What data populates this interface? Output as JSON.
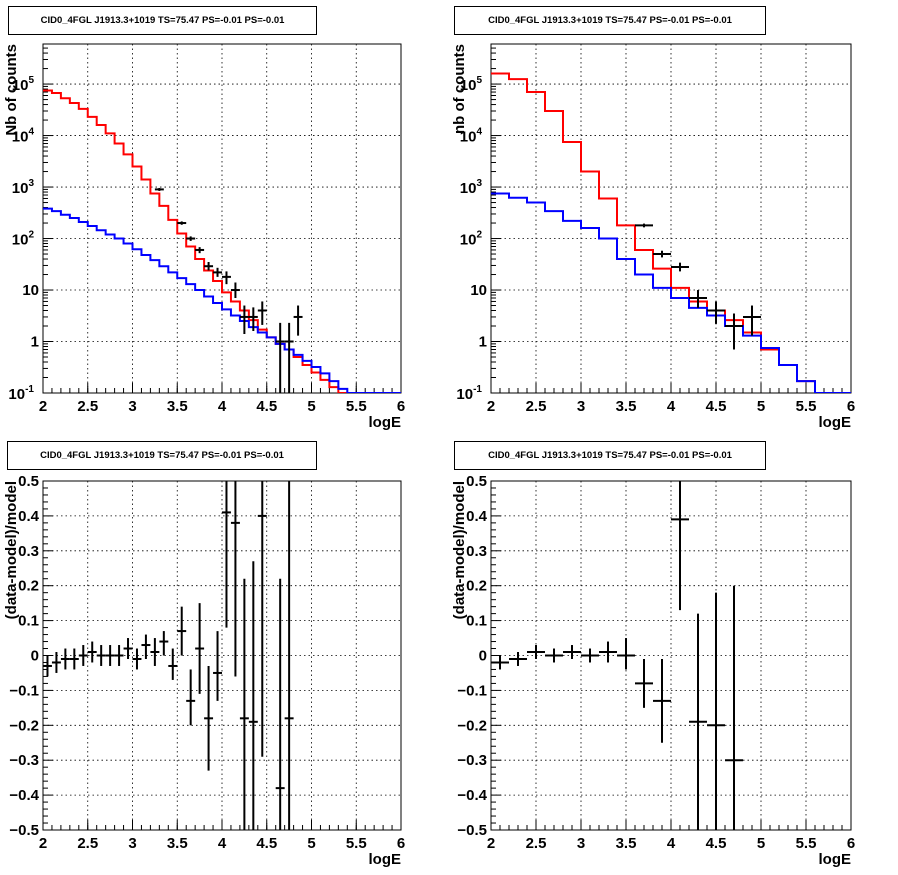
{
  "chart_data": [
    {
      "type": "histogram",
      "title": "CID0_4FGL J1913.3+1019 TS=75.47 PS=-0.01 PS=-0.01",
      "xlabel": "logE",
      "ylabel": "Nb of counts",
      "ylog": true,
      "xlim": [
        2,
        6
      ],
      "ylim": [
        0.1,
        600000
      ],
      "grid": true,
      "x_ticks": [
        "2",
        "2.5",
        "3",
        "3.5",
        "4",
        "4.5",
        "5",
        "5.5",
        "6"
      ],
      "y_ticks": [
        "10^-1",
        "1",
        "10",
        "10^2",
        "10^3",
        "10^4",
        "10^5"
      ],
      "series": [
        {
          "color": "#ff0000",
          "style": "step",
          "bin_edges": [
            2.0,
            2.1,
            2.2,
            2.3,
            2.4,
            2.5,
            2.6,
            2.7,
            2.8,
            2.9,
            3.0,
            3.1,
            3.2,
            3.3,
            3.4,
            3.5,
            3.6,
            3.7,
            3.8,
            3.9,
            4.0,
            4.1,
            4.2,
            4.3,
            4.4,
            4.5,
            4.6,
            4.7,
            4.8,
            4.9,
            5.0,
            5.1,
            5.2,
            5.3,
            5.4,
            5.5,
            5.6,
            5.7,
            5.8,
            5.9,
            6.0
          ],
          "values": [
            75000,
            67000,
            53000,
            43000,
            33000,
            23000,
            16000,
            11000,
            7000,
            4300,
            2500,
            1400,
            750,
            430,
            230,
            125,
            70,
            40,
            24,
            15,
            9,
            6,
            4,
            2.6,
            1.7,
            1.2,
            0.9,
            0.7,
            0.5,
            0.35,
            0.25,
            0.18,
            0.13,
            0.1,
            0.1,
            0.1,
            0.1,
            0.1,
            0.1,
            0.1
          ]
        },
        {
          "color": "#0000ff",
          "style": "step",
          "bin_edges": [
            2.0,
            2.1,
            2.2,
            2.3,
            2.4,
            2.5,
            2.6,
            2.7,
            2.8,
            2.9,
            3.0,
            3.1,
            3.2,
            3.3,
            3.4,
            3.5,
            3.6,
            3.7,
            3.8,
            3.9,
            4.0,
            4.1,
            4.2,
            4.3,
            4.4,
            4.5,
            4.6,
            4.7,
            4.8,
            4.9,
            5.0,
            5.1,
            5.2,
            5.3,
            5.4,
            5.5,
            5.6,
            5.7,
            5.8,
            5.9,
            6.0
          ],
          "values": [
            380,
            340,
            290,
            250,
            210,
            175,
            145,
            120,
            100,
            80,
            62,
            48,
            38,
            29,
            22,
            17,
            13,
            10,
            7.5,
            5.6,
            4.2,
            3.2,
            2.5,
            1.9,
            1.5,
            1.2,
            0.9,
            0.7,
            0.55,
            0.42,
            0.32,
            0.24,
            0.17,
            0.12,
            0.1,
            0.1,
            0.1,
            0.1,
            0.1,
            0.1
          ]
        },
        {
          "color": "#000000",
          "style": "errorbar",
          "points": [
            {
              "x": 3.3,
              "xerr": 0.05,
              "y": 900,
              "ylo": 840,
              "yhi": 960
            },
            {
              "x": 3.55,
              "xerr": 0.05,
              "y": 200,
              "ylo": 185,
              "yhi": 215
            },
            {
              "x": 3.65,
              "xerr": 0.05,
              "y": 100,
              "ylo": 90,
              "yhi": 110
            },
            {
              "x": 3.75,
              "xerr": 0.05,
              "y": 60,
              "ylo": 52,
              "yhi": 68
            },
            {
              "x": 3.85,
              "xerr": 0.05,
              "y": 29,
              "ylo": 24,
              "yhi": 35
            },
            {
              "x": 3.95,
              "xerr": 0.05,
              "y": 22,
              "ylo": 18,
              "yhi": 27
            },
            {
              "x": 4.05,
              "xerr": 0.05,
              "y": 18,
              "ylo": 13,
              "yhi": 23
            },
            {
              "x": 4.15,
              "xerr": 0.05,
              "y": 10,
              "ylo": 7,
              "yhi": 14
            },
            {
              "x": 4.25,
              "xerr": 0.05,
              "y": 3,
              "ylo": 1.4,
              "yhi": 5
            },
            {
              "x": 4.35,
              "xerr": 0.05,
              "y": 3,
              "ylo": 1.6,
              "yhi": 4.6
            },
            {
              "x": 4.45,
              "xerr": 0.05,
              "y": 4,
              "ylo": 2.1,
              "yhi": 6
            },
            {
              "x": 4.65,
              "xerr": 0.05,
              "y": 1,
              "ylo": 0.1,
              "yhi": 2.3
            },
            {
              "x": 4.75,
              "xerr": 0.05,
              "y": 1,
              "ylo": 0.1,
              "yhi": 2.3
            },
            {
              "x": 4.85,
              "xerr": 0.05,
              "y": 3,
              "ylo": 1.3,
              "yhi": 5
            }
          ]
        }
      ]
    },
    {
      "type": "histogram",
      "title": "CID0_4FGL J1913.3+1019 TS=75.47 PS=-0.01 PS=-0.01",
      "xlabel": "logE",
      "ylabel": "nb of counts",
      "ylog": true,
      "xlim": [
        2,
        6
      ],
      "ylim": [
        0.1,
        600000
      ],
      "grid": true,
      "x_ticks": [
        "2",
        "2.5",
        "3",
        "3.5",
        "4",
        "4.5",
        "5",
        "5.5",
        "6"
      ],
      "y_ticks": [
        "10^-1",
        "1",
        "10",
        "10^2",
        "10^3",
        "10^4",
        "10^5"
      ],
      "series": [
        {
          "color": "#ff0000",
          "style": "step",
          "bin_edges": [
            2.0,
            2.2,
            2.4,
            2.6,
            2.8,
            3.0,
            3.2,
            3.4,
            3.6,
            3.8,
            4.0,
            4.2,
            4.4,
            4.6,
            4.8,
            5.0,
            5.2,
            5.4,
            5.6,
            5.8,
            6.0
          ],
          "values": [
            160000,
            125000,
            70000,
            30000,
            7500,
            2000,
            600,
            180,
            60,
            26,
            11,
            6,
            4,
            2.6,
            1.5,
            0.7,
            0.35,
            0.17,
            0.1,
            0.1
          ]
        },
        {
          "color": "#0000ff",
          "style": "step",
          "bin_edges": [
            2.0,
            2.2,
            2.4,
            2.6,
            2.8,
            3.0,
            3.2,
            3.4,
            3.6,
            3.8,
            4.0,
            4.2,
            4.4,
            4.6,
            4.8,
            5.0,
            5.2,
            5.4,
            5.6,
            5.8,
            6.0
          ],
          "values": [
            750,
            620,
            500,
            340,
            220,
            160,
            100,
            40,
            20,
            11,
            7,
            4.5,
            3.2,
            2,
            1.3,
            0.75,
            0.35,
            0.17,
            0.1,
            0.1
          ]
        },
        {
          "color": "#000000",
          "style": "errorbar",
          "points": [
            {
              "x": 3.7,
              "xerr": 0.1,
              "y": 180,
              "ylo": 165,
              "yhi": 195
            },
            {
              "x": 3.9,
              "xerr": 0.1,
              "y": 50,
              "ylo": 43,
              "yhi": 58
            },
            {
              "x": 4.1,
              "xerr": 0.1,
              "y": 28,
              "ylo": 23,
              "yhi": 34
            },
            {
              "x": 4.3,
              "xerr": 0.1,
              "y": 7,
              "ylo": 4.5,
              "yhi": 10
            },
            {
              "x": 4.5,
              "xerr": 0.1,
              "y": 4,
              "ylo": 2.2,
              "yhi": 6
            },
            {
              "x": 4.7,
              "xerr": 0.1,
              "y": 2,
              "ylo": 0.7,
              "yhi": 3.5
            },
            {
              "x": 4.9,
              "xerr": 0.1,
              "y": 3,
              "ylo": 1.3,
              "yhi": 5
            }
          ]
        }
      ]
    },
    {
      "type": "errorbar",
      "title": "CID0_4FGL J1913.3+1019 TS=75.47 PS=-0.01 PS=-0.01",
      "xlabel": "logE",
      "ylabel": "(data-model)/model",
      "ylog": false,
      "xlim": [
        2,
        6
      ],
      "ylim": [
        -0.5,
        0.5
      ],
      "grid": true,
      "x_ticks": [
        "2",
        "2.5",
        "3",
        "3.5",
        "4",
        "4.5",
        "5",
        "5.5",
        "6"
      ],
      "y_ticks": [
        "−0.5",
        "−0.4",
        "−0.3",
        "−0.2",
        "−0.1",
        "0",
        "0.1",
        "0.2",
        "0.3",
        "0.4",
        "0.5"
      ],
      "series": [
        {
          "color": "#000000",
          "style": "errorbar",
          "points": [
            {
              "x": 2.05,
              "xerr": 0.05,
              "y": -0.03,
              "ylo": -0.06,
              "yhi": 0.0
            },
            {
              "x": 2.15,
              "xerr": 0.05,
              "y": -0.02,
              "ylo": -0.05,
              "yhi": 0.01
            },
            {
              "x": 2.25,
              "xerr": 0.05,
              "y": -0.01,
              "ylo": -0.04,
              "yhi": 0.02
            },
            {
              "x": 2.35,
              "xerr": 0.05,
              "y": -0.01,
              "ylo": -0.04,
              "yhi": 0.02
            },
            {
              "x": 2.45,
              "xerr": 0.05,
              "y": 0.0,
              "ylo": -0.03,
              "yhi": 0.03
            },
            {
              "x": 2.55,
              "xerr": 0.05,
              "y": 0.01,
              "ylo": -0.02,
              "yhi": 0.04
            },
            {
              "x": 2.65,
              "xerr": 0.05,
              "y": 0.0,
              "ylo": -0.03,
              "yhi": 0.03
            },
            {
              "x": 2.75,
              "xerr": 0.05,
              "y": 0.0,
              "ylo": -0.03,
              "yhi": 0.03
            },
            {
              "x": 2.85,
              "xerr": 0.05,
              "y": 0.0,
              "ylo": -0.03,
              "yhi": 0.03
            },
            {
              "x": 2.95,
              "xerr": 0.05,
              "y": 0.02,
              "ylo": -0.01,
              "yhi": 0.05
            },
            {
              "x": 3.05,
              "xerr": 0.05,
              "y": -0.01,
              "ylo": -0.04,
              "yhi": 0.02
            },
            {
              "x": 3.15,
              "xerr": 0.05,
              "y": 0.03,
              "ylo": -0.01,
              "yhi": 0.06
            },
            {
              "x": 3.25,
              "xerr": 0.05,
              "y": 0.01,
              "ylo": -0.03,
              "yhi": 0.05
            },
            {
              "x": 3.35,
              "xerr": 0.05,
              "y": 0.04,
              "ylo": 0.0,
              "yhi": 0.07
            },
            {
              "x": 3.45,
              "xerr": 0.05,
              "y": -0.03,
              "ylo": -0.07,
              "yhi": 0.02
            },
            {
              "x": 3.55,
              "xerr": 0.05,
              "y": 0.07,
              "ylo": 0.0,
              "yhi": 0.14
            },
            {
              "x": 3.65,
              "xerr": 0.05,
              "y": -0.13,
              "ylo": -0.2,
              "yhi": -0.04
            },
            {
              "x": 3.75,
              "xerr": 0.05,
              "y": 0.02,
              "ylo": -0.11,
              "yhi": 0.15
            },
            {
              "x": 3.85,
              "xerr": 0.05,
              "y": -0.18,
              "ylo": -0.33,
              "yhi": -0.03
            },
            {
              "x": 3.95,
              "xerr": 0.05,
              "y": -0.05,
              "ylo": -0.13,
              "yhi": 0.07
            },
            {
              "x": 4.05,
              "xerr": 0.05,
              "y": 0.41,
              "ylo": 0.08,
              "yhi": 0.5
            },
            {
              "x": 4.15,
              "xerr": 0.05,
              "y": 0.38,
              "ylo": -0.06,
              "yhi": 0.5
            },
            {
              "x": 4.25,
              "xerr": 0.05,
              "y": -0.18,
              "ylo": -0.5,
              "yhi": 0.22
            },
            {
              "x": 4.35,
              "xerr": 0.05,
              "y": -0.19,
              "ylo": -0.5,
              "yhi": 0.27
            },
            {
              "x": 4.45,
              "xerr": 0.05,
              "y": 0.4,
              "ylo": -0.29,
              "yhi": 0.5
            },
            {
              "x": 4.65,
              "xerr": 0.05,
              "y": -0.38,
              "ylo": -0.5,
              "yhi": 0.22
            },
            {
              "x": 4.75,
              "xerr": 0.05,
              "y": -0.18,
              "ylo": -0.5,
              "yhi": 0.5
            }
          ]
        }
      ]
    },
    {
      "type": "errorbar",
      "title": "CID0_4FGL J1913.3+1019 TS=75.47 PS=-0.01 PS=-0.01",
      "xlabel": "logE",
      "ylabel": "(data-model)/model",
      "ylog": false,
      "xlim": [
        2,
        6
      ],
      "ylim": [
        -0.5,
        0.5
      ],
      "grid": true,
      "x_ticks": [
        "2",
        "2.5",
        "3",
        "3.5",
        "4",
        "4.5",
        "5",
        "5.5",
        "6"
      ],
      "y_ticks": [
        "−0.5",
        "−0.4",
        "−0.3",
        "−0.2",
        "−0.1",
        "0",
        "0.1",
        "0.2",
        "0.3",
        "0.4",
        "0.5"
      ],
      "series": [
        {
          "color": "#000000",
          "style": "errorbar",
          "points": [
            {
              "x": 2.1,
              "xerr": 0.1,
              "y": -0.02,
              "ylo": -0.04,
              "yhi": 0.0
            },
            {
              "x": 2.3,
              "xerr": 0.1,
              "y": -0.01,
              "ylo": -0.03,
              "yhi": 0.01
            },
            {
              "x": 2.5,
              "xerr": 0.1,
              "y": 0.01,
              "ylo": -0.01,
              "yhi": 0.03
            },
            {
              "x": 2.7,
              "xerr": 0.1,
              "y": 0.0,
              "ylo": -0.02,
              "yhi": 0.02
            },
            {
              "x": 2.9,
              "xerr": 0.1,
              "y": 0.01,
              "ylo": -0.01,
              "yhi": 0.03
            },
            {
              "x": 3.1,
              "xerr": 0.1,
              "y": 0.0,
              "ylo": -0.02,
              "yhi": 0.02
            },
            {
              "x": 3.3,
              "xerr": 0.1,
              "y": 0.01,
              "ylo": -0.02,
              "yhi": 0.04
            },
            {
              "x": 3.5,
              "xerr": 0.1,
              "y": 0.0,
              "ylo": -0.04,
              "yhi": 0.05
            },
            {
              "x": 3.7,
              "xerr": 0.1,
              "y": -0.08,
              "ylo": -0.15,
              "yhi": -0.01
            },
            {
              "x": 3.9,
              "xerr": 0.1,
              "y": -0.13,
              "ylo": -0.25,
              "yhi": -0.01
            },
            {
              "x": 4.1,
              "xerr": 0.1,
              "y": 0.39,
              "ylo": 0.13,
              "yhi": 0.5
            },
            {
              "x": 4.3,
              "xerr": 0.1,
              "y": -0.19,
              "ylo": -0.5,
              "yhi": 0.12
            },
            {
              "x": 4.5,
              "xerr": 0.1,
              "y": -0.2,
              "ylo": -0.5,
              "yhi": 0.18
            },
            {
              "x": 4.7,
              "xerr": 0.1,
              "y": -0.3,
              "ylo": -0.5,
              "yhi": 0.2
            }
          ]
        }
      ]
    }
  ]
}
